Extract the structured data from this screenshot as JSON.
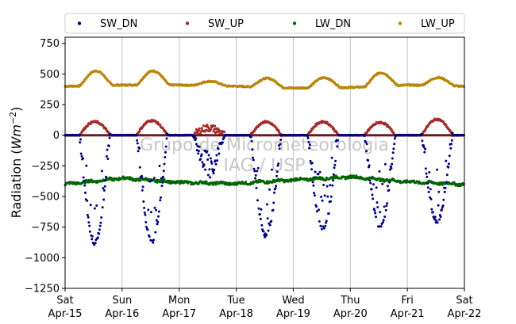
{
  "chart_data": {
    "type": "scatter",
    "ylabel": "Radiation",
    "ylabel_unit_base": "Wm",
    "ylabel_unit_exp": "−2",
    "ylim": [
      -1250,
      800
    ],
    "yticks": [
      800,
      750,
      500,
      250,
      0,
      -250,
      -500,
      -750,
      -1000,
      -1250
    ],
    "ytick_labels": [
      "750",
      "500",
      "250",
      "0",
      "−250",
      "−500",
      "−750",
      "−1000",
      "−1250"
    ],
    "ytick_values": [
      750,
      500,
      250,
      0,
      -250,
      -500,
      -750,
      -1000,
      -1250
    ],
    "xlim": [
      "2023-04-15T00:00",
      "2023-04-22T00:00"
    ],
    "xticks": [
      {
        "day": "Sat",
        "date": "Apr-15"
      },
      {
        "day": "Sun",
        "date": "Apr-16"
      },
      {
        "day": "Mon",
        "date": "Apr-17"
      },
      {
        "day": "Tue",
        "date": "Apr-18"
      },
      {
        "day": "Wed",
        "date": "Apr-19"
      },
      {
        "day": "Thu",
        "date": "Apr-20"
      },
      {
        "day": "Fri",
        "date": "Apr-21"
      },
      {
        "day": "Sat",
        "date": "Apr-22"
      }
    ],
    "grid": "vertical",
    "legend_placement": "top",
    "watermark": [
      "Grupo de Micrometeorologia",
      "IAG / USP"
    ],
    "series": [
      {
        "name": "SW_DN",
        "color": "#000080",
        "description": "daytime downward shortwave, negative values, approx −900 at peak, 0 at night",
        "daily_peak_values": [
          -880,
          -870,
          -380,
          -820,
          -770,
          -740,
          -700
        ],
        "sample_points": [
          {
            "day": 0,
            "hour": 10,
            "value": -300
          },
          {
            "day": 0,
            "hour": 12,
            "value": -820
          },
          {
            "day": 0,
            "hour": 14,
            "value": -500
          },
          {
            "day": 1,
            "hour": 12,
            "value": -830
          },
          {
            "day": 2,
            "hour": 11,
            "value": -300
          },
          {
            "day": 3,
            "hour": 12,
            "value": -760
          },
          {
            "day": 4,
            "hour": 12,
            "value": -760
          },
          {
            "day": 5,
            "hour": 12,
            "value": -740
          },
          {
            "day": 6,
            "hour": 12,
            "value": -700
          }
        ]
      },
      {
        "name": "SW_UP",
        "color": "#a52a2a",
        "description": "reflected shortwave, ~0 at night, ~110 midday",
        "daily_peak_values": [
          110,
          120,
          60,
          110,
          110,
          105,
          130
        ]
      },
      {
        "name": "LW_DN",
        "color": "#006400",
        "description": "downward longwave, negative, ~−360 to −410",
        "daily_values": [
          -400,
          -350,
          -385,
          -395,
          -365,
          -340,
          -380,
          -400
        ]
      },
      {
        "name": "LW_UP",
        "color": "#b8860b",
        "description": "upward longwave, ~400 night, ~520 midday",
        "daily_peak_values": [
          525,
          525,
          440,
          465,
          470,
          510,
          470
        ],
        "night_values": [
          400,
          410,
          410,
          400,
          385,
          390,
          410,
          400
        ]
      }
    ]
  }
}
